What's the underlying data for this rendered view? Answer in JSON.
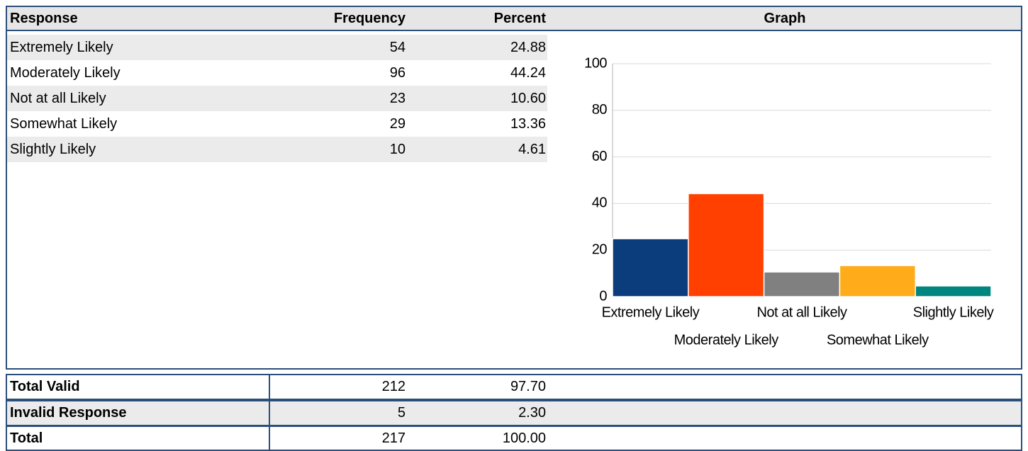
{
  "table": {
    "header": [
      "Response",
      "Frequency",
      "Percent",
      "Graph"
    ],
    "rows": [
      [
        "Extremely Likely",
        "54",
        "24.88"
      ],
      [
        "Moderately Likely",
        "96",
        "44.24"
      ],
      [
        "Not at all Likely",
        "23",
        "10.60"
      ],
      [
        "Somewhat Likely",
        "29",
        "13.36"
      ],
      [
        "Slightly Likely",
        "10",
        "4.61"
      ]
    ],
    "summary": [
      [
        "Total Valid",
        "212",
        "97.70"
      ],
      [
        "Invalid Response",
        "5",
        "2.30"
      ],
      [
        "Total",
        "217",
        "100.00"
      ]
    ]
  },
  "chart_data": {
    "type": "bar",
    "categories": [
      "Extremely Likely",
      "Moderately Likely",
      "Not at all Likely",
      "Somewhat Likely",
      "Slightly Likely"
    ],
    "values": [
      24.88,
      44.24,
      10.6,
      13.36,
      4.61
    ],
    "colors": [
      "#0b3d7c",
      "#ff4000",
      "#808080",
      "#ffab1a",
      "#00857f"
    ],
    "ylim": [
      0,
      100
    ],
    "yticks": [
      0,
      20,
      40,
      60,
      80,
      100
    ],
    "grid": true
  }
}
